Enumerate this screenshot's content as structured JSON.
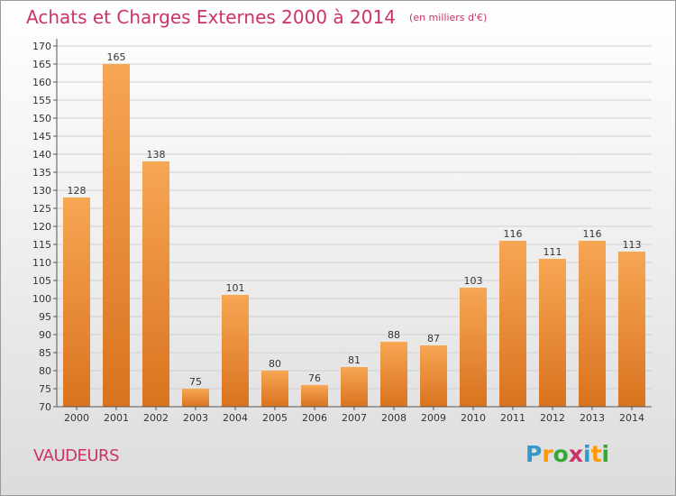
{
  "header": {
    "title": "Achats et Charges Externes 2000 à 2014",
    "unit": "(en milliers d'€)"
  },
  "footer": {
    "place": "VAUDEURS",
    "logo": {
      "text": "Proxiti",
      "letters": [
        {
          "ch": "P",
          "color": "#3399cc"
        },
        {
          "ch": "r",
          "color": "#ff9900"
        },
        {
          "ch": "o",
          "color": "#33aa33"
        },
        {
          "ch": "x",
          "color": "#cc3366"
        },
        {
          "ch": "i",
          "color": "#3399cc"
        },
        {
          "ch": "t",
          "color": "#ff9900"
        },
        {
          "ch": "i",
          "color": "#33aa33"
        }
      ]
    }
  },
  "chart_data": {
    "type": "bar",
    "title": "Achats et Charges Externes 2000 à 2014",
    "subtitle": "(en milliers d'€)",
    "xlabel": "",
    "ylabel": "",
    "categories": [
      "2000",
      "2001",
      "2002",
      "2003",
      "2004",
      "2005",
      "2006",
      "2007",
      "2008",
      "2009",
      "2010",
      "2011",
      "2012",
      "2013",
      "2014"
    ],
    "values": [
      128,
      165,
      138,
      75,
      101,
      80,
      76,
      81,
      88,
      87,
      103,
      116,
      111,
      116,
      113
    ],
    "ylim": [
      70,
      170
    ],
    "yticks": [
      70,
      75,
      80,
      85,
      90,
      95,
      100,
      105,
      110,
      115,
      120,
      125,
      130,
      135,
      140,
      145,
      150,
      155,
      160,
      165,
      170
    ],
    "grid": true,
    "bar_color_light": "#f7a654",
    "bar_color_dark": "#d9731f",
    "axis_color": "#555555",
    "grid_color": "#cfcfcf"
  }
}
